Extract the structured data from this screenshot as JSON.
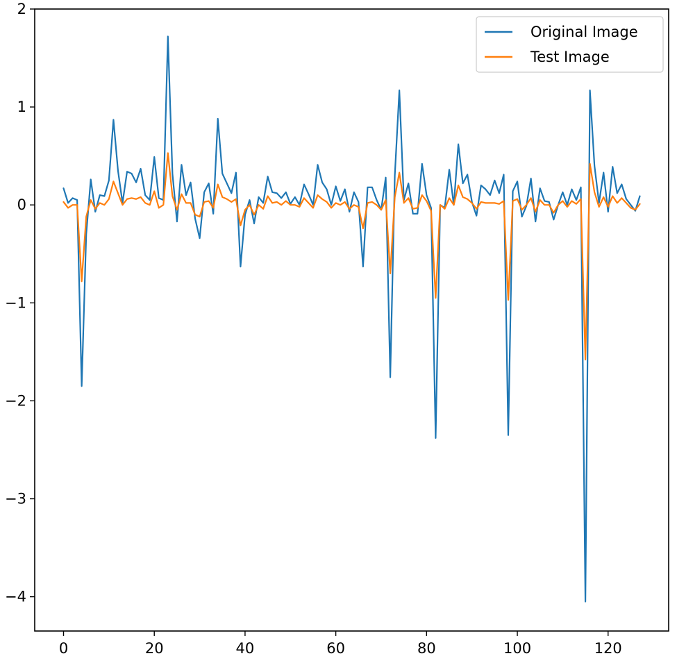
{
  "chart_data": {
    "type": "line",
    "title": "",
    "xlabel": "",
    "ylabel": "",
    "xlim": [
      -6.35,
      133.35
    ],
    "ylim": [
      -4.35,
      2.0
    ],
    "xticks": [
      0,
      20,
      40,
      60,
      80,
      100,
      120
    ],
    "yticks": [
      -4,
      -3,
      -2,
      -1,
      0,
      1,
      2
    ],
    "grid": false,
    "legend_position": "top-right",
    "series": [
      {
        "name": "Original Image",
        "color": "#1f77b4",
        "values": [
          0.17,
          0.02,
          0.07,
          0.05,
          -1.85,
          -0.3,
          0.26,
          -0.07,
          0.1,
          0.09,
          0.25,
          0.87,
          0.35,
          0.02,
          0.34,
          0.32,
          0.23,
          0.37,
          0.1,
          0.05,
          0.49,
          0.07,
          0.05,
          1.72,
          0.32,
          -0.17,
          0.41,
          0.1,
          0.23,
          -0.14,
          -0.34,
          0.13,
          0.22,
          -0.09,
          0.88,
          0.32,
          0.22,
          0.12,
          0.33,
          -0.63,
          -0.1,
          0.05,
          -0.19,
          0.08,
          0.02,
          0.29,
          0.13,
          0.12,
          0.07,
          0.13,
          0.01,
          0.08,
          0.0,
          0.21,
          0.11,
          0.0,
          0.41,
          0.23,
          0.16,
          0.0,
          0.19,
          0.04,
          0.16,
          -0.07,
          0.13,
          0.03,
          -0.63,
          0.18,
          0.18,
          0.05,
          -0.05,
          0.28,
          -1.76,
          0.3,
          1.17,
          0.05,
          0.22,
          -0.09,
          -0.09,
          0.42,
          0.1,
          -0.03,
          -2.38,
          0.0,
          -0.03,
          0.36,
          0.0,
          0.62,
          0.22,
          0.31,
          0.03,
          -0.11,
          0.2,
          0.16,
          0.1,
          0.25,
          0.12,
          0.31,
          -2.35,
          0.14,
          0.24,
          -0.12,
          -0.01,
          0.27,
          -0.17,
          0.17,
          0.04,
          0.03,
          -0.15,
          0.0,
          0.13,
          0.0,
          0.16,
          0.05,
          0.18,
          -4.05,
          1.17,
          0.4,
          0.02,
          0.33,
          -0.07,
          0.39,
          0.12,
          0.21,
          0.06,
          0.0,
          -0.06,
          0.09
        ]
      },
      {
        "name": "Test Image",
        "color": "#ff7f0e",
        "values": [
          0.03,
          -0.03,
          0.0,
          0.0,
          -0.78,
          -0.12,
          0.05,
          -0.04,
          0.02,
          0.0,
          0.06,
          0.24,
          0.12,
          0.0,
          0.06,
          0.07,
          0.06,
          0.08,
          0.02,
          0.0,
          0.14,
          -0.03,
          0.0,
          0.53,
          0.09,
          -0.05,
          0.11,
          0.02,
          0.02,
          -0.1,
          -0.12,
          0.03,
          0.04,
          -0.03,
          0.21,
          0.08,
          0.06,
          0.03,
          0.06,
          -0.21,
          -0.05,
          0.0,
          -0.1,
          0.0,
          -0.04,
          0.09,
          0.02,
          0.03,
          0.0,
          0.04,
          0.0,
          0.0,
          -0.02,
          0.07,
          0.02,
          -0.03,
          0.1,
          0.06,
          0.03,
          -0.03,
          0.02,
          0.0,
          0.03,
          -0.04,
          0.0,
          -0.02,
          -0.24,
          0.02,
          0.03,
          0.0,
          -0.05,
          0.05,
          -0.7,
          0.08,
          0.33,
          0.02,
          0.07,
          -0.04,
          -0.03,
          0.1,
          0.04,
          -0.06,
          -0.95,
          0.0,
          -0.04,
          0.07,
          0.0,
          0.2,
          0.08,
          0.06,
          0.02,
          -0.04,
          0.03,
          0.02,
          0.02,
          0.02,
          0.01,
          0.04,
          -0.97,
          0.04,
          0.06,
          -0.05,
          0.0,
          0.07,
          -0.07,
          0.05,
          0.0,
          0.0,
          -0.08,
          0.0,
          0.04,
          -0.02,
          0.04,
          0.01,
          0.06,
          -1.58,
          0.42,
          0.13,
          -0.02,
          0.08,
          -0.02,
          0.09,
          0.02,
          0.07,
          0.02,
          -0.03,
          -0.05,
          0.01
        ]
      }
    ]
  }
}
